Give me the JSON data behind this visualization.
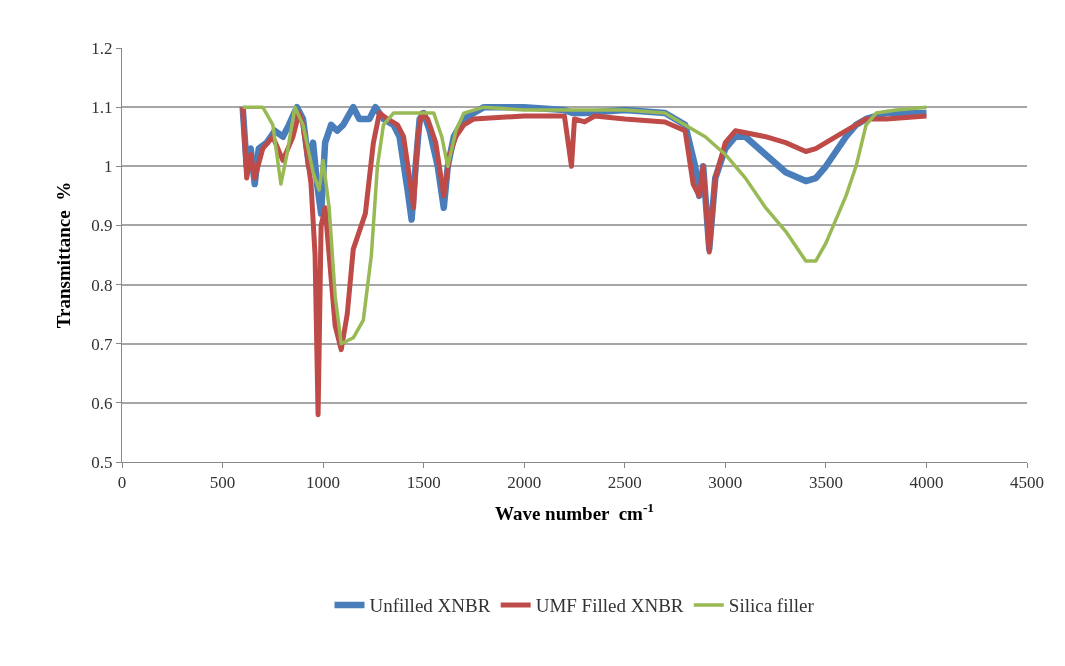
{
  "chart_data": {
    "type": "line",
    "xlabel": "Wave number  cm$^{-1}$",
    "ylabel": "Transmittance  %",
    "xlim": [
      0,
      4500
    ],
    "xticks": [
      0,
      500,
      1000,
      1500,
      2000,
      2500,
      3000,
      3500,
      4000,
      4500
    ],
    "ylim": [
      0.5,
      1.2
    ],
    "yticks": [
      0.5,
      0.6,
      0.7,
      0.8,
      0.9,
      1,
      1.1,
      1.2
    ],
    "grid": "y",
    "legend": "bottom",
    "marker": "none",
    "line_style": "solid",
    "series": [
      {
        "name": "Unfilled XNBR",
        "color": "#4a7ebb",
        "x": [
          600,
          620,
          640,
          660,
          680,
          720,
          760,
          800,
          830,
          870,
          900,
          930,
          950,
          970,
          990,
          1010,
          1040,
          1070,
          1100,
          1150,
          1180,
          1230,
          1260,
          1300,
          1350,
          1380,
          1420,
          1440,
          1460,
          1480,
          1500,
          1530,
          1570,
          1600,
          1620,
          1650,
          1700,
          1750,
          1800,
          2000,
          2200,
          2240,
          2300,
          2500,
          2700,
          2800,
          2850,
          2870,
          2890,
          2920,
          2950,
          3000,
          3050,
          3100,
          3200,
          3300,
          3400,
          3450,
          3500,
          3600,
          3650,
          3700,
          3800,
          4000
        ],
        "values": [
          1.1,
          1.0,
          1.03,
          0.97,
          1.03,
          1.04,
          1.06,
          1.05,
          1.07,
          1.1,
          1.08,
          1.0,
          1.04,
          0.97,
          0.92,
          1.04,
          1.07,
          1.06,
          1.07,
          1.1,
          1.08,
          1.08,
          1.1,
          1.08,
          1.07,
          1.05,
          0.96,
          0.91,
          1.0,
          1.08,
          1.09,
          1.06,
          1.0,
          0.93,
          1.0,
          1.05,
          1.08,
          1.09,
          1.1,
          1.1,
          1.095,
          1.09,
          1.09,
          1.095,
          1.09,
          1.07,
          1.0,
          0.95,
          1.0,
          0.86,
          0.98,
          1.03,
          1.05,
          1.05,
          1.02,
          0.99,
          0.975,
          0.98,
          1.0,
          1.05,
          1.07,
          1.08,
          1.09,
          1.09
        ]
      },
      {
        "name": "UMF Filled XNBR",
        "color": "#be4b48",
        "x": [
          600,
          620,
          640,
          660,
          700,
          750,
          800,
          850,
          880,
          900,
          940,
          960,
          975,
          990,
          1010,
          1030,
          1060,
          1090,
          1120,
          1150,
          1180,
          1210,
          1250,
          1280,
          1320,
          1370,
          1400,
          1430,
          1450,
          1470,
          1490,
          1520,
          1560,
          1600,
          1630,
          1660,
          1700,
          1750,
          2000,
          2200,
          2235,
          2250,
          2300,
          2350,
          2500,
          2700,
          2800,
          2840,
          2870,
          2890,
          2920,
          2950,
          3000,
          3050,
          3200,
          3300,
          3400,
          3450,
          3550,
          3650,
          3700,
          3800,
          4000
        ],
        "values": [
          1.1,
          0.98,
          1.02,
          0.98,
          1.03,
          1.05,
          1.01,
          1.05,
          1.09,
          1.07,
          0.97,
          0.85,
          0.58,
          0.9,
          0.93,
          0.85,
          0.73,
          0.69,
          0.75,
          0.86,
          0.89,
          0.92,
          1.04,
          1.09,
          1.08,
          1.07,
          1.05,
          0.98,
          0.93,
          1.05,
          1.09,
          1.08,
          1.04,
          0.95,
          1.02,
          1.05,
          1.07,
          1.08,
          1.085,
          1.085,
          1.0,
          1.08,
          1.075,
          1.085,
          1.08,
          1.075,
          1.06,
          0.97,
          0.95,
          1.0,
          0.855,
          0.98,
          1.04,
          1.06,
          1.05,
          1.04,
          1.025,
          1.03,
          1.05,
          1.07,
          1.08,
          1.08,
          1.085
        ]
      },
      {
        "name": "Silica filler",
        "color": "#98b954",
        "x": [
          600,
          700,
          750,
          790,
          820,
          860,
          900,
          950,
          980,
          1000,
          1030,
          1060,
          1090,
          1150,
          1200,
          1240,
          1270,
          1300,
          1350,
          1400,
          1450,
          1550,
          1590,
          1620,
          1660,
          1700,
          1800,
          2000,
          2500,
          2700,
          2800,
          2900,
          3000,
          3100,
          3200,
          3300,
          3400,
          3450,
          3500,
          3600,
          3650,
          3700,
          3750,
          3850,
          4000
        ],
        "values": [
          1.1,
          1.1,
          1.07,
          0.97,
          1.02,
          1.1,
          1.07,
          0.99,
          0.96,
          1.01,
          0.93,
          0.78,
          0.7,
          0.71,
          0.74,
          0.85,
          1.0,
          1.07,
          1.09,
          1.09,
          1.09,
          1.09,
          1.05,
          1.0,
          1.06,
          1.09,
          1.1,
          1.095,
          1.095,
          1.09,
          1.07,
          1.05,
          1.02,
          0.98,
          0.93,
          0.89,
          0.84,
          0.84,
          0.87,
          0.95,
          1.0,
          1.07,
          1.09,
          1.095,
          1.1
        ]
      }
    ]
  }
}
